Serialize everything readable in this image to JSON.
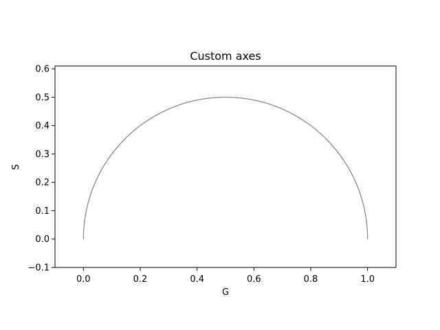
{
  "chart_data": {
    "type": "line",
    "title": "Custom axes",
    "xlabel": "G",
    "ylabel": "S",
    "xlim": [
      -0.1,
      1.1
    ],
    "ylim": [
      -0.1,
      0.61
    ],
    "xticks": [
      0.0,
      0.2,
      0.4,
      0.6,
      0.8,
      1.0
    ],
    "xtick_labels": [
      "0.0",
      "0.2",
      "0.4",
      "0.6",
      "0.8",
      "1.0"
    ],
    "yticks": [
      -0.1,
      0.0,
      0.1,
      0.2,
      0.3,
      0.4,
      0.5,
      0.6
    ],
    "ytick_labels": [
      "−0.1",
      "0.0",
      "0.1",
      "0.2",
      "0.3",
      "0.4",
      "0.5",
      "0.6"
    ],
    "grid": false,
    "series": [
      {
        "name": "semicircle",
        "color": "#808080",
        "shape": "upper semicircle centered at (0.5, 0) with radius 0.5",
        "x": [
          0.0,
          0.0495,
          0.1464,
          0.25,
          0.5,
          0.75,
          0.8536,
          0.9505,
          1.0
        ],
        "y": [
          0.0,
          0.2179,
          0.3536,
          0.433,
          0.5,
          0.433,
          0.3536,
          0.2179,
          0.0
        ]
      }
    ]
  }
}
